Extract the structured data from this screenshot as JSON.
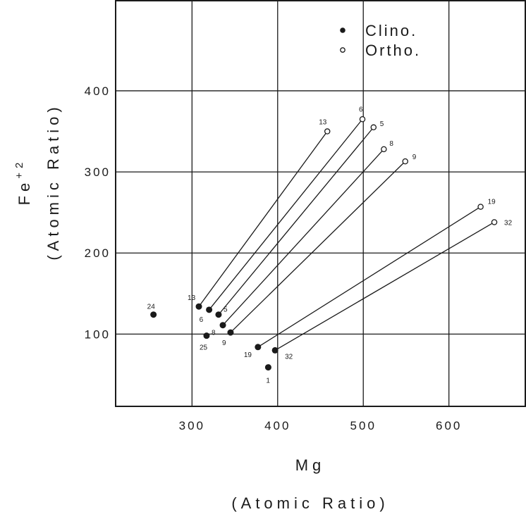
{
  "chart_data": {
    "type": "scatter",
    "title": "",
    "xlabel": "Mg",
    "xlabel_sub": "(Atomic Ratio)",
    "ylabel": "Fe",
    "ylabel_sup": "+2",
    "ylabel_sub": "(Atomic Ratio)",
    "xlim": [
      210,
      690
    ],
    "ylim": [
      10,
      512
    ],
    "x_ticks": [
      300,
      400,
      500,
      600
    ],
    "x_tick_labels": [
      "300",
      "400",
      "500",
      "600"
    ],
    "y_ticks": [
      100,
      200,
      300,
      400
    ],
    "y_tick_labels": [
      "100",
      "200",
      "300",
      "400"
    ],
    "grid": true,
    "legend_position": "top-right",
    "legend": [
      {
        "marker": "filled",
        "label": "Clino."
      },
      {
        "marker": "open",
        "label": "Ortho."
      }
    ],
    "series": [
      {
        "name": "Clino.",
        "marker": "filled",
        "points": [
          {
            "label": "24",
            "x": 255,
            "y": 124
          },
          {
            "label": "13",
            "x": 308,
            "y": 134
          },
          {
            "label": "6",
            "x": 320,
            "y": 130
          },
          {
            "label": "5",
            "x": 331,
            "y": 124
          },
          {
            "label": "8",
            "x": 336,
            "y": 111
          },
          {
            "label": "25",
            "x": 317,
            "y": 98
          },
          {
            "label": "9",
            "x": 345,
            "y": 102
          },
          {
            "label": "19",
            "x": 377,
            "y": 84
          },
          {
            "label": "32",
            "x": 397,
            "y": 80
          },
          {
            "label": "1",
            "x": 389,
            "y": 59
          }
        ]
      },
      {
        "name": "Ortho.",
        "marker": "open",
        "points": [
          {
            "label": "13",
            "x": 458,
            "y": 350
          },
          {
            "label": "6",
            "x": 499,
            "y": 365
          },
          {
            "label": "5",
            "x": 512,
            "y": 355
          },
          {
            "label": "8",
            "x": 524,
            "y": 328
          },
          {
            "label": "9",
            "x": 549,
            "y": 313
          },
          {
            "label": "19",
            "x": 637,
            "y": 257
          },
          {
            "label": "32",
            "x": 653,
            "y": 238
          }
        ]
      }
    ],
    "tie_lines": [
      {
        "from": [
          308,
          134
        ],
        "to": [
          458,
          350
        ]
      },
      {
        "from": [
          320,
          130
        ],
        "to": [
          499,
          365
        ]
      },
      {
        "from": [
          331,
          124
        ],
        "to": [
          512,
          355
        ]
      },
      {
        "from": [
          336,
          111
        ],
        "to": [
          524,
          328
        ]
      },
      {
        "from": [
          345,
          102
        ],
        "to": [
          549,
          313
        ]
      },
      {
        "from": [
          377,
          84
        ],
        "to": [
          637,
          257
        ]
      },
      {
        "from": [
          397,
          80
        ],
        "to": [
          653,
          238
        ]
      }
    ]
  }
}
